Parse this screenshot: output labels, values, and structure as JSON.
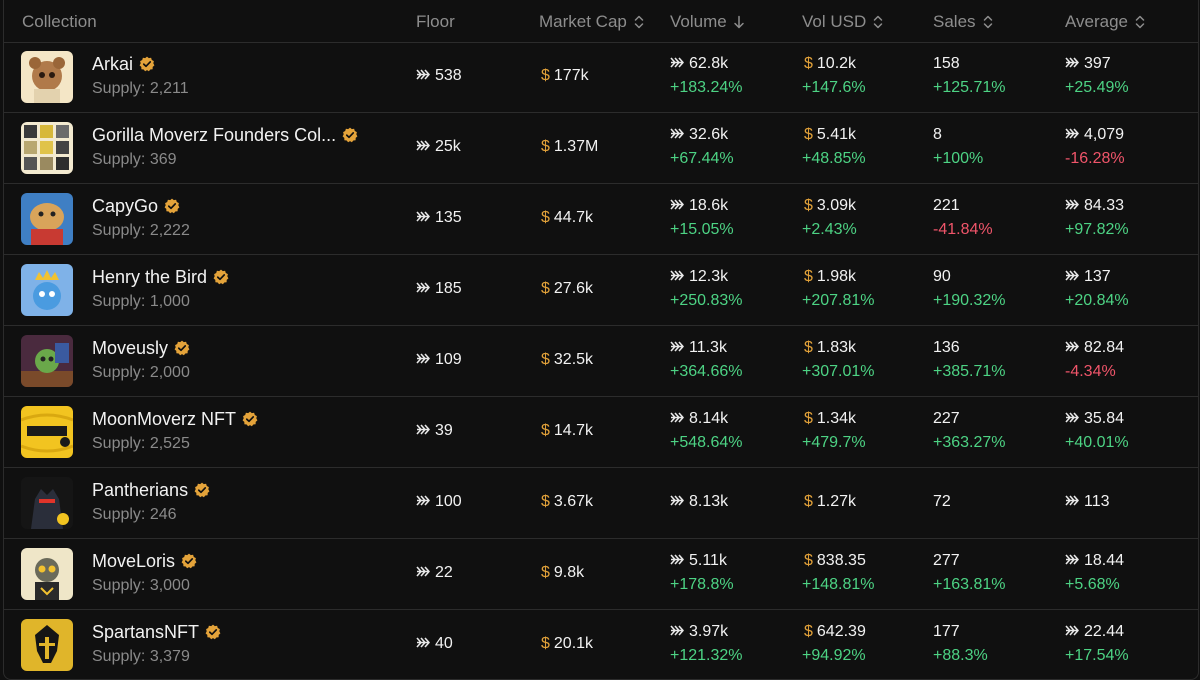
{
  "columns": {
    "collection": "Collection",
    "floor": "Floor",
    "market_cap": "Market Cap",
    "volume": "Volume",
    "vol_usd": "Vol USD",
    "sales": "Sales",
    "average": "Average"
  },
  "colors": {
    "positive": "#4dd384",
    "negative": "#f0556a",
    "usd": "#e4a33a",
    "verified": "#e4a33a"
  },
  "currency_symbol": "$",
  "rows": [
    {
      "name": "Arkai",
      "supply": "Supply: 2,211",
      "floor": "538",
      "market_cap": "177k",
      "volume": "62.8k",
      "volume_change": "+183.24%",
      "vol_usd": "10.2k",
      "vol_usd_change": "+147.6%",
      "sales": "158",
      "sales_change": "+125.71%",
      "average": "397",
      "average_change": "+25.49%"
    },
    {
      "name": "Gorilla Moverz Founders Col...",
      "supply": "Supply: 369",
      "floor": "25k",
      "market_cap": "1.37M",
      "volume": "32.6k",
      "volume_change": "+67.44%",
      "vol_usd": "5.41k",
      "vol_usd_change": "+48.85%",
      "sales": "8",
      "sales_change": "+100%",
      "average": "4,079",
      "average_change": "-16.28%"
    },
    {
      "name": "CapyGo",
      "supply": "Supply: 2,222",
      "floor": "135",
      "market_cap": "44.7k",
      "volume": "18.6k",
      "volume_change": "+15.05%",
      "vol_usd": "3.09k",
      "vol_usd_change": "+2.43%",
      "sales": "221",
      "sales_change": "-41.84%",
      "average": "84.33",
      "average_change": "+97.82%"
    },
    {
      "name": "Henry the Bird",
      "supply": "Supply: 1,000",
      "floor": "185",
      "market_cap": "27.6k",
      "volume": "12.3k",
      "volume_change": "+250.83%",
      "vol_usd": "1.98k",
      "vol_usd_change": "+207.81%",
      "sales": "90",
      "sales_change": "+190.32%",
      "average": "137",
      "average_change": "+20.84%"
    },
    {
      "name": "Moveusly",
      "supply": "Supply: 2,000",
      "floor": "109",
      "market_cap": "32.5k",
      "volume": "11.3k",
      "volume_change": "+364.66%",
      "vol_usd": "1.83k",
      "vol_usd_change": "+307.01%",
      "sales": "136",
      "sales_change": "+385.71%",
      "average": "82.84",
      "average_change": "-4.34%"
    },
    {
      "name": "MoonMoverz NFT",
      "supply": "Supply: 2,525",
      "floor": "39",
      "market_cap": "14.7k",
      "volume": "8.14k",
      "volume_change": "+548.64%",
      "vol_usd": "1.34k",
      "vol_usd_change": "+479.7%",
      "sales": "227",
      "sales_change": "+363.27%",
      "average": "35.84",
      "average_change": "+40.01%"
    },
    {
      "name": "Pantherians",
      "supply": "Supply: 246",
      "floor": "100",
      "market_cap": "3.67k",
      "volume": "8.13k",
      "volume_change": "",
      "vol_usd": "1.27k",
      "vol_usd_change": "",
      "sales": "72",
      "sales_change": "",
      "average": "113",
      "average_change": ""
    },
    {
      "name": "MoveLoris",
      "supply": "Supply: 3,000",
      "floor": "22",
      "market_cap": "9.8k",
      "volume": "5.11k",
      "volume_change": "+178.8%",
      "vol_usd": "838.35",
      "vol_usd_change": "+148.81%",
      "sales": "277",
      "sales_change": "+163.81%",
      "average": "18.44",
      "average_change": "+5.68%"
    },
    {
      "name": "SpartansNFT",
      "supply": "Supply: 3,379",
      "floor": "40",
      "market_cap": "20.1k",
      "volume": "3.97k",
      "volume_change": "+121.32%",
      "vol_usd": "642.39",
      "vol_usd_change": "+94.92%",
      "sales": "177",
      "sales_change": "+88.3%",
      "average": "22.44",
      "average_change": "+17.54%"
    }
  ]
}
